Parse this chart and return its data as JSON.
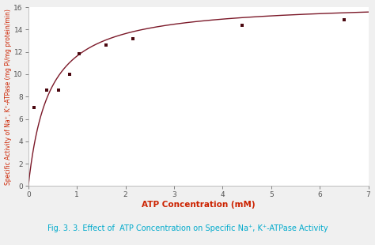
{
  "data_points_x": [
    0.12,
    0.38,
    0.62,
    0.85,
    1.05,
    1.6,
    2.15,
    4.4,
    6.5
  ],
  "data_points_y": [
    7.0,
    8.6,
    8.6,
    10.0,
    11.8,
    12.6,
    13.2,
    14.4,
    14.9
  ],
  "Vmax": 16.5,
  "Km": 0.42,
  "x_min": 0,
  "x_max": 7,
  "y_min": 0,
  "y_max": 16,
  "x_ticks": [
    0,
    1,
    2,
    3,
    4,
    5,
    6,
    7
  ],
  "y_ticks": [
    0,
    2,
    4,
    6,
    8,
    10,
    12,
    14,
    16
  ],
  "xlabel": "ATP Concentration (mM)",
  "ylabel": "Specific Activity of Na⁺, K⁺-ATPase (mg Pi/mg protein/min)",
  "curve_color": "#7B1828",
  "point_color": "#4B0810",
  "caption_color": "#00AACC",
  "xlabel_color": "#CC2200",
  "ylabel_color": "#CC2200",
  "axis_color": "#AAAAAA",
  "bg_color": "#FFFFFF",
  "fig_bg_color": "#F0F0F0"
}
